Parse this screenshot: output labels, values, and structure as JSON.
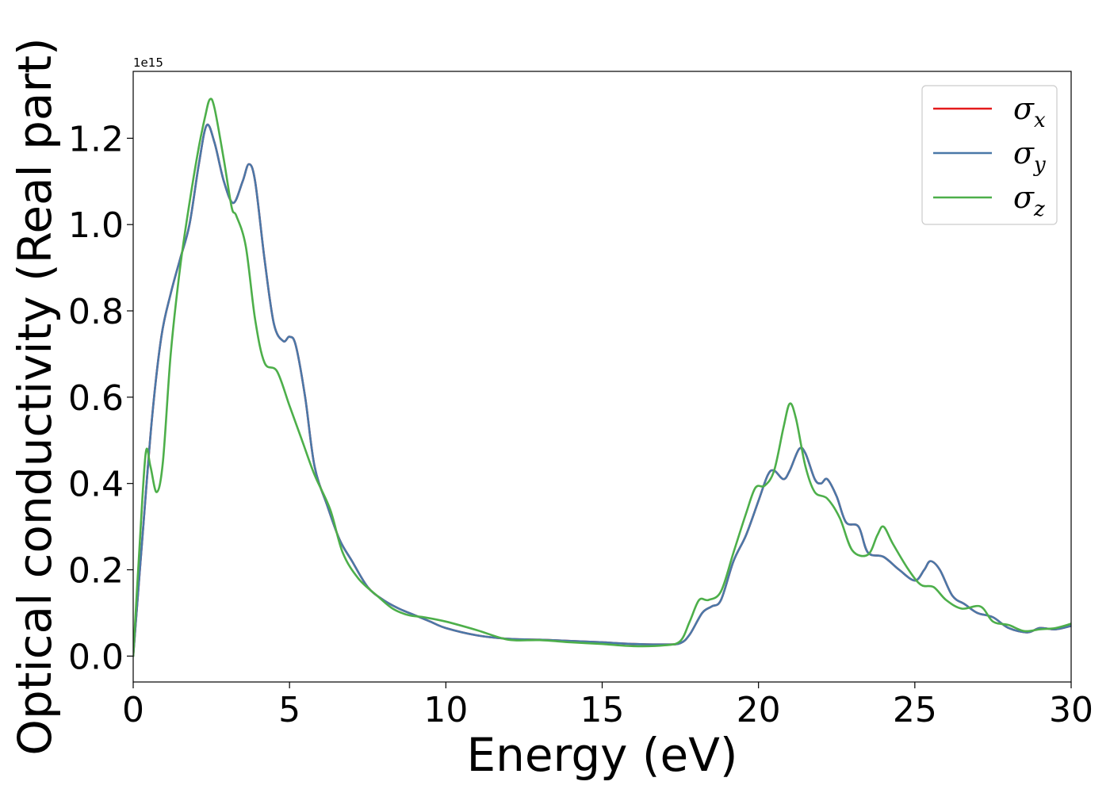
{
  "chart_data": {
    "type": "line",
    "title": "",
    "xlabel": "Energy (eV)",
    "ylabel": "Optical conductivity (Real part)",
    "offset_text": "1e15",
    "xlim": [
      0,
      30
    ],
    "ylim": [
      -0.06,
      1.355
    ],
    "x_ticks": [
      0,
      5,
      10,
      15,
      20,
      25,
      30
    ],
    "x_tick_labels": [
      "0",
      "5",
      "10",
      "15",
      "20",
      "25",
      "30"
    ],
    "y_ticks": [
      0.0,
      0.2,
      0.4,
      0.6,
      0.8,
      1.0,
      1.2
    ],
    "y_tick_labels": [
      "0.0",
      "0.2",
      "0.4",
      "0.6",
      "0.8",
      "1.0",
      "1.2"
    ],
    "grid": false,
    "legend_position": "top-right",
    "series": [
      {
        "name": "σx",
        "symbol": "σ",
        "subscript": "x",
        "color": "#e41a1c",
        "points": [
          [
            0,
            0.0
          ],
          [
            0.3,
            0.28
          ],
          [
            0.6,
            0.55
          ],
          [
            0.9,
            0.74
          ],
          [
            1.2,
            0.84
          ],
          [
            1.5,
            0.92
          ],
          [
            1.8,
            1.0
          ],
          [
            2.1,
            1.14
          ],
          [
            2.35,
            1.23
          ],
          [
            2.6,
            1.19
          ],
          [
            2.9,
            1.1
          ],
          [
            3.2,
            1.05
          ],
          [
            3.5,
            1.1
          ],
          [
            3.7,
            1.14
          ],
          [
            3.9,
            1.1
          ],
          [
            4.2,
            0.92
          ],
          [
            4.5,
            0.77
          ],
          [
            4.8,
            0.73
          ],
          [
            5.0,
            0.74
          ],
          [
            5.2,
            0.72
          ],
          [
            5.5,
            0.6
          ],
          [
            5.8,
            0.44
          ],
          [
            6.2,
            0.35
          ],
          [
            6.6,
            0.27
          ],
          [
            7.0,
            0.22
          ],
          [
            7.5,
            0.16
          ],
          [
            8.0,
            0.13
          ],
          [
            8.5,
            0.11
          ],
          [
            9.0,
            0.095
          ],
          [
            9.5,
            0.08
          ],
          [
            10.0,
            0.065
          ],
          [
            11.0,
            0.048
          ],
          [
            12.0,
            0.04
          ],
          [
            13.0,
            0.038
          ],
          [
            14.0,
            0.035
          ],
          [
            15.0,
            0.032
          ],
          [
            16.0,
            0.028
          ],
          [
            17.0,
            0.027
          ],
          [
            17.5,
            0.03
          ],
          [
            17.8,
            0.05
          ],
          [
            18.2,
            0.1
          ],
          [
            18.5,
            0.115
          ],
          [
            18.8,
            0.13
          ],
          [
            19.2,
            0.22
          ],
          [
            19.6,
            0.28
          ],
          [
            20.0,
            0.36
          ],
          [
            20.3,
            0.42
          ],
          [
            20.5,
            0.43
          ],
          [
            20.8,
            0.41
          ],
          [
            21.0,
            0.43
          ],
          [
            21.3,
            0.48
          ],
          [
            21.5,
            0.47
          ],
          [
            21.8,
            0.41
          ],
          [
            22.0,
            0.4
          ],
          [
            22.2,
            0.41
          ],
          [
            22.5,
            0.37
          ],
          [
            22.8,
            0.31
          ],
          [
            23.2,
            0.3
          ],
          [
            23.5,
            0.24
          ],
          [
            24.0,
            0.23
          ],
          [
            24.5,
            0.2
          ],
          [
            25.0,
            0.175
          ],
          [
            25.3,
            0.2
          ],
          [
            25.5,
            0.22
          ],
          [
            25.8,
            0.2
          ],
          [
            26.2,
            0.14
          ],
          [
            26.6,
            0.12
          ],
          [
            27.0,
            0.1
          ],
          [
            27.5,
            0.09
          ],
          [
            28.0,
            0.065
          ],
          [
            28.6,
            0.055
          ],
          [
            29.0,
            0.065
          ],
          [
            29.5,
            0.062
          ],
          [
            30.0,
            0.07
          ]
        ]
      },
      {
        "name": "σy",
        "symbol": "σ",
        "subscript": "y",
        "color": "#4a78a8",
        "points": [
          [
            0,
            0.0
          ],
          [
            0.3,
            0.28
          ],
          [
            0.6,
            0.55
          ],
          [
            0.9,
            0.74
          ],
          [
            1.2,
            0.84
          ],
          [
            1.5,
            0.92
          ],
          [
            1.8,
            1.0
          ],
          [
            2.1,
            1.14
          ],
          [
            2.35,
            1.23
          ],
          [
            2.6,
            1.19
          ],
          [
            2.9,
            1.1
          ],
          [
            3.2,
            1.05
          ],
          [
            3.5,
            1.1
          ],
          [
            3.7,
            1.14
          ],
          [
            3.9,
            1.1
          ],
          [
            4.2,
            0.92
          ],
          [
            4.5,
            0.77
          ],
          [
            4.8,
            0.73
          ],
          [
            5.0,
            0.74
          ],
          [
            5.2,
            0.72
          ],
          [
            5.5,
            0.6
          ],
          [
            5.8,
            0.44
          ],
          [
            6.2,
            0.35
          ],
          [
            6.6,
            0.27
          ],
          [
            7.0,
            0.22
          ],
          [
            7.5,
            0.16
          ],
          [
            8.0,
            0.13
          ],
          [
            8.5,
            0.11
          ],
          [
            9.0,
            0.095
          ],
          [
            9.5,
            0.08
          ],
          [
            10.0,
            0.065
          ],
          [
            11.0,
            0.048
          ],
          [
            12.0,
            0.04
          ],
          [
            13.0,
            0.038
          ],
          [
            14.0,
            0.035
          ],
          [
            15.0,
            0.032
          ],
          [
            16.0,
            0.028
          ],
          [
            17.0,
            0.027
          ],
          [
            17.5,
            0.03
          ],
          [
            17.8,
            0.05
          ],
          [
            18.2,
            0.1
          ],
          [
            18.5,
            0.115
          ],
          [
            18.8,
            0.13
          ],
          [
            19.2,
            0.22
          ],
          [
            19.6,
            0.28
          ],
          [
            20.0,
            0.36
          ],
          [
            20.3,
            0.42
          ],
          [
            20.5,
            0.43
          ],
          [
            20.8,
            0.41
          ],
          [
            21.0,
            0.43
          ],
          [
            21.3,
            0.48
          ],
          [
            21.5,
            0.47
          ],
          [
            21.8,
            0.41
          ],
          [
            22.0,
            0.4
          ],
          [
            22.2,
            0.41
          ],
          [
            22.5,
            0.37
          ],
          [
            22.8,
            0.31
          ],
          [
            23.2,
            0.3
          ],
          [
            23.5,
            0.24
          ],
          [
            24.0,
            0.23
          ],
          [
            24.5,
            0.2
          ],
          [
            25.0,
            0.175
          ],
          [
            25.3,
            0.2
          ],
          [
            25.5,
            0.22
          ],
          [
            25.8,
            0.2
          ],
          [
            26.2,
            0.14
          ],
          [
            26.6,
            0.12
          ],
          [
            27.0,
            0.1
          ],
          [
            27.5,
            0.09
          ],
          [
            28.0,
            0.065
          ],
          [
            28.6,
            0.055
          ],
          [
            29.0,
            0.065
          ],
          [
            29.5,
            0.062
          ],
          [
            30.0,
            0.07
          ]
        ]
      },
      {
        "name": "σz",
        "symbol": "σ",
        "subscript": "z",
        "color": "#4daf4a",
        "points": [
          [
            0,
            0.0
          ],
          [
            0.2,
            0.25
          ],
          [
            0.4,
            0.47
          ],
          [
            0.55,
            0.44
          ],
          [
            0.75,
            0.38
          ],
          [
            0.95,
            0.45
          ],
          [
            1.2,
            0.7
          ],
          [
            1.5,
            0.9
          ],
          [
            1.8,
            1.05
          ],
          [
            2.1,
            1.18
          ],
          [
            2.3,
            1.25
          ],
          [
            2.45,
            1.29
          ],
          [
            2.6,
            1.27
          ],
          [
            2.9,
            1.15
          ],
          [
            3.15,
            1.04
          ],
          [
            3.3,
            1.02
          ],
          [
            3.6,
            0.95
          ],
          [
            3.9,
            0.78
          ],
          [
            4.2,
            0.68
          ],
          [
            4.6,
            0.66
          ],
          [
            5.0,
            0.58
          ],
          [
            5.4,
            0.5
          ],
          [
            5.8,
            0.42
          ],
          [
            6.3,
            0.34
          ],
          [
            6.7,
            0.24
          ],
          [
            7.2,
            0.18
          ],
          [
            7.8,
            0.14
          ],
          [
            8.3,
            0.11
          ],
          [
            8.8,
            0.095
          ],
          [
            9.3,
            0.09
          ],
          [
            10.0,
            0.08
          ],
          [
            11.0,
            0.06
          ],
          [
            12.0,
            0.038
          ],
          [
            13.0,
            0.037
          ],
          [
            14.0,
            0.032
          ],
          [
            15.0,
            0.028
          ],
          [
            16.0,
            0.023
          ],
          [
            17.0,
            0.025
          ],
          [
            17.5,
            0.035
          ],
          [
            17.8,
            0.08
          ],
          [
            18.1,
            0.13
          ],
          [
            18.4,
            0.13
          ],
          [
            18.8,
            0.15
          ],
          [
            19.2,
            0.24
          ],
          [
            19.6,
            0.33
          ],
          [
            19.9,
            0.39
          ],
          [
            20.2,
            0.395
          ],
          [
            20.5,
            0.43
          ],
          [
            20.8,
            0.53
          ],
          [
            21.0,
            0.585
          ],
          [
            21.2,
            0.55
          ],
          [
            21.5,
            0.44
          ],
          [
            21.8,
            0.38
          ],
          [
            22.2,
            0.365
          ],
          [
            22.6,
            0.32
          ],
          [
            23.0,
            0.245
          ],
          [
            23.5,
            0.235
          ],
          [
            23.8,
            0.28
          ],
          [
            24.0,
            0.3
          ],
          [
            24.3,
            0.26
          ],
          [
            24.8,
            0.2
          ],
          [
            25.2,
            0.165
          ],
          [
            25.6,
            0.16
          ],
          [
            26.0,
            0.13
          ],
          [
            26.5,
            0.11
          ],
          [
            27.1,
            0.115
          ],
          [
            27.5,
            0.08
          ],
          [
            28.0,
            0.072
          ],
          [
            28.5,
            0.058
          ],
          [
            29.0,
            0.062
          ],
          [
            29.5,
            0.065
          ],
          [
            30.0,
            0.075
          ]
        ]
      }
    ]
  }
}
